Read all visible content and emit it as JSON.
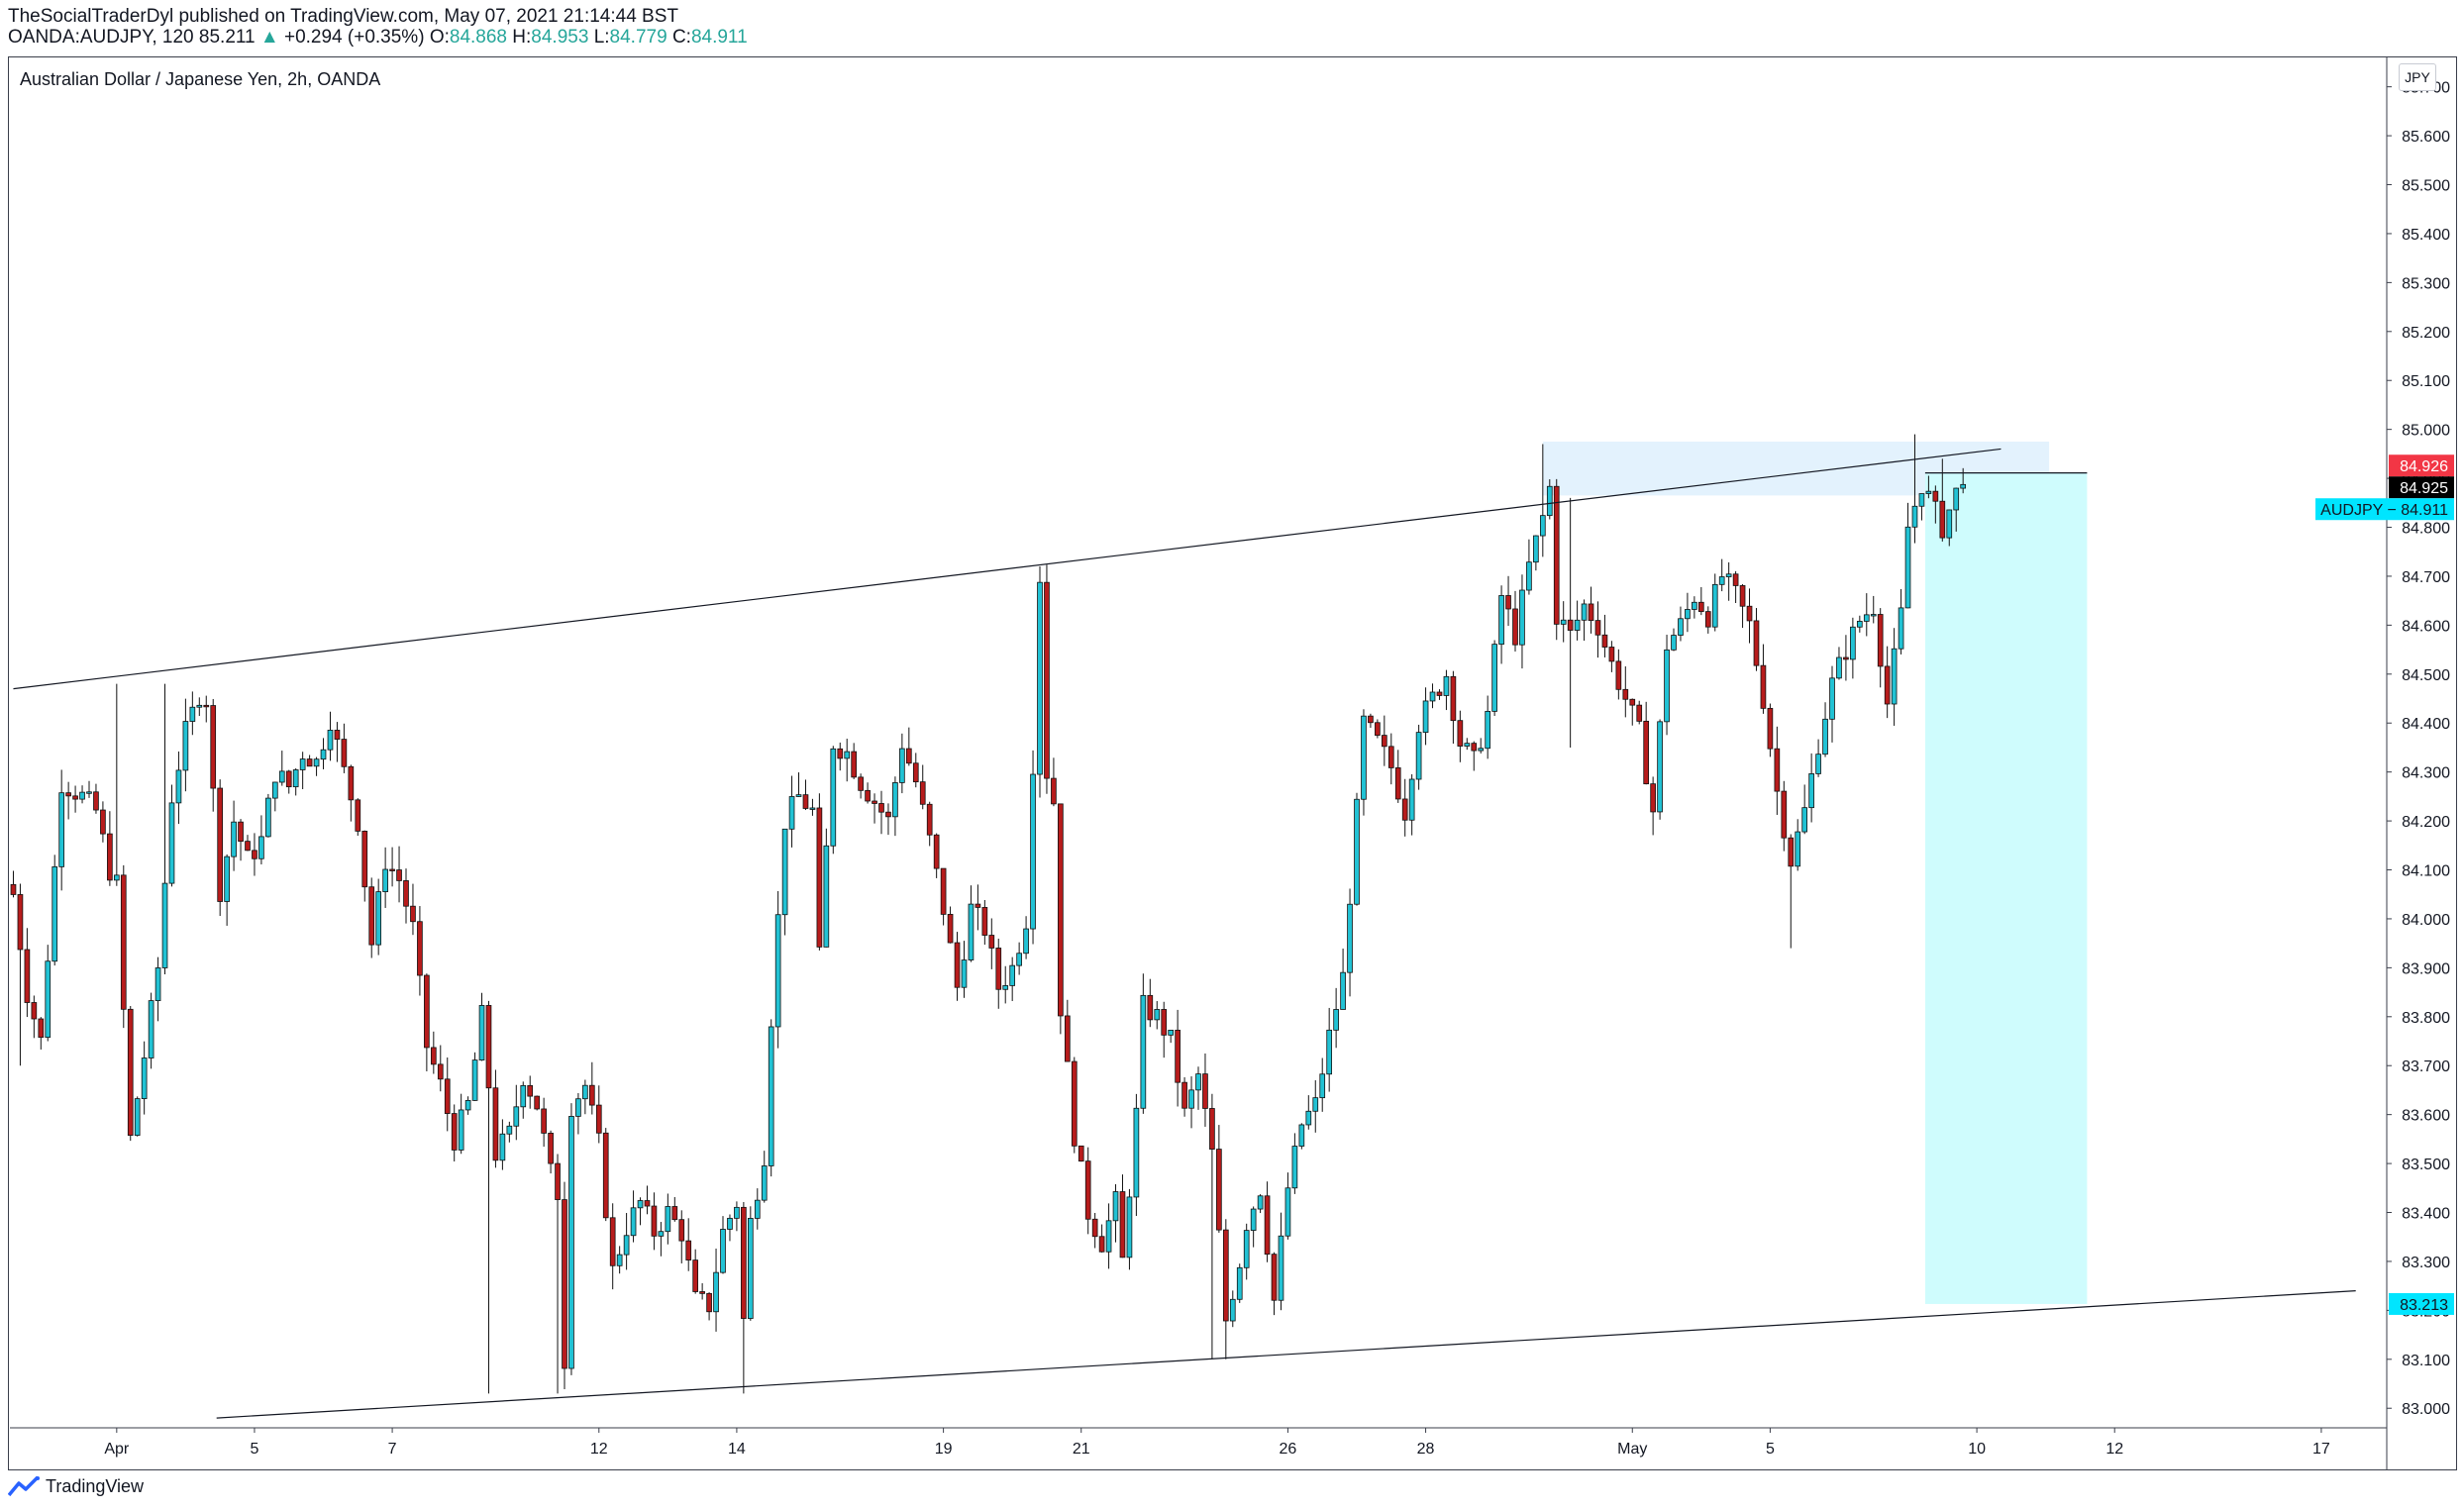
{
  "header": {
    "publisher": "TheSocialTraderDyl published on TradingView.com, May 07, 2021 21:14:44 BST",
    "symbol_line": "OANDA:AUDJPY, 120",
    "last": "85.211",
    "change_arrow": "▲",
    "change": "+0.294 (+0.35%)",
    "o_label": "O:",
    "o": "84.868",
    "h_label": "H:",
    "h": "84.953",
    "l_label": "L:",
    "l": "84.779",
    "c_label": "C:",
    "c": "84.911"
  },
  "footer": {
    "brand": "TradingView",
    "logo_icon": "tradingview-logo-icon"
  },
  "colors": {
    "up": "#26a69a",
    "down": "#b71c1c",
    "candle_up_fill": "#22c2d4",
    "tp_zone": "#cffcfd",
    "zone": "#e3f2fd",
    "red_tag": "#f23645",
    "cyan_tag": "#00e5ff"
  },
  "chart_data": {
    "type": "candlestick",
    "title": "Australian Dollar / Japanese Yen, 2h, OANDA",
    "currency": "JPY",
    "ylim": [
      82.96,
      85.76
    ],
    "y_ticks": [
      "85.700",
      "85.600",
      "85.500",
      "85.400",
      "85.300",
      "85.200",
      "85.100",
      "85.000",
      "84.900",
      "84.800",
      "84.700",
      "84.600",
      "84.500",
      "84.400",
      "84.300",
      "84.200",
      "84.100",
      "84.000",
      "83.900",
      "83.800",
      "83.700",
      "83.600",
      "83.500",
      "83.400",
      "83.300",
      "83.200",
      "83.100",
      "83.000"
    ],
    "x_ticks": [
      "Apr",
      "5",
      "7",
      "12",
      "14",
      "19",
      "21",
      "26",
      "28",
      "May",
      "5",
      "10",
      "12",
      "17"
    ],
    "x_tick_index": [
      15,
      35,
      55,
      85,
      105,
      135,
      155,
      185,
      205,
      235,
      255,
      285,
      305,
      335
    ],
    "x_slots": 345,
    "price_tags": [
      {
        "label": "84.926",
        "value": 84.926,
        "color": "#f23645"
      },
      {
        "label": "84.925",
        "value": 84.925,
        "color": "#000000"
      },
      {
        "label": "AUDJPY − 84.911",
        "value": 84.911,
        "color": "#00e5ff"
      },
      {
        "label": "83.213",
        "value": 83.213,
        "color": "#00e5ff"
      }
    ],
    "trendlines": [
      {
        "name": "upper-trendline",
        "from": {
          "i": 0,
          "v": 84.47
        },
        "to": {
          "i": 288.5,
          "v": 84.96
        }
      },
      {
        "name": "lower-trendline",
        "from": {
          "i": 29.5,
          "v": 82.98
        },
        "to": {
          "i": 340,
          "v": 83.24
        }
      }
    ],
    "zones": [
      {
        "name": "resistance-zone",
        "i0": 222,
        "i1": 295.5,
        "v0": 84.975,
        "v1": 84.865
      },
      {
        "name": "target-zone",
        "i0": 277.5,
        "i1": 301,
        "v0": 84.911,
        "v1": 83.213
      }
    ],
    "level_line": {
      "i0": 277.5,
      "i1": 301,
      "v": 84.911
    },
    "anchors": [
      [
        0,
        84.05
      ],
      [
        2,
        83.85
      ],
      [
        4,
        83.75
      ],
      [
        7,
        84.28
      ],
      [
        10,
        84.25
      ],
      [
        12,
        84.22
      ],
      [
        14,
        84.1
      ],
      [
        15,
        84.07
      ],
      [
        17,
        83.55
      ],
      [
        19,
        83.72
      ],
      [
        21,
        83.9
      ],
      [
        23,
        84.25
      ],
      [
        25,
        84.38
      ],
      [
        27,
        84.46
      ],
      [
        28,
        84.45
      ],
      [
        30,
        84.06
      ],
      [
        32,
        84.2
      ],
      [
        34,
        84.12
      ],
      [
        36,
        84.16
      ],
      [
        38,
        84.3
      ],
      [
        40,
        84.27
      ],
      [
        42,
        84.34
      ],
      [
        44,
        84.32
      ],
      [
        46,
        84.41
      ],
      [
        48,
        84.3
      ],
      [
        50,
        84.2
      ],
      [
        52,
        83.95
      ],
      [
        54,
        84.12
      ],
      [
        56,
        84.08
      ],
      [
        58,
        83.98
      ],
      [
        60,
        83.74
      ],
      [
        62,
        83.66
      ],
      [
        64,
        83.55
      ],
      [
        66,
        83.62
      ],
      [
        68,
        83.8
      ],
      [
        70,
        83.52
      ],
      [
        72,
        83.56
      ],
      [
        74,
        83.68
      ],
      [
        76,
        83.62
      ],
      [
        78,
        83.48
      ],
      [
        79,
        83.44
      ],
      [
        80,
        83.1
      ],
      [
        81,
        83.62
      ],
      [
        83,
        83.66
      ],
      [
        85,
        83.54
      ],
      [
        87,
        83.28
      ],
      [
        89,
        83.37
      ],
      [
        91,
        83.42
      ],
      [
        93,
        83.36
      ],
      [
        95,
        83.4
      ],
      [
        97,
        83.36
      ],
      [
        99,
        83.22
      ],
      [
        101,
        83.21
      ],
      [
        103,
        83.36
      ],
      [
        105,
        83.42
      ],
      [
        106,
        83.18
      ],
      [
        107,
        83.38
      ],
      [
        109,
        83.52
      ],
      [
        110,
        83.8
      ],
      [
        112,
        84.2
      ],
      [
        114,
        84.25
      ],
      [
        116,
        84.22
      ],
      [
        117,
        83.92
      ],
      [
        119,
        84.36
      ],
      [
        121,
        84.34
      ],
      [
        123,
        84.28
      ],
      [
        125,
        84.24
      ],
      [
        127,
        84.2
      ],
      [
        129,
        84.36
      ],
      [
        131,
        84.28
      ],
      [
        133,
        84.16
      ],
      [
        135,
        84.02
      ],
      [
        137,
        83.86
      ],
      [
        139,
        84.02
      ],
      [
        141,
        83.98
      ],
      [
        143,
        83.86
      ],
      [
        145,
        83.9
      ],
      [
        147,
        84.0
      ],
      [
        148,
        84.32
      ],
      [
        149,
        84.7
      ],
      [
        150,
        84.3
      ],
      [
        151,
        84.24
      ],
      [
        152,
        83.82
      ],
      [
        154,
        83.56
      ],
      [
        156,
        83.4
      ],
      [
        158,
        83.34
      ],
      [
        160,
        83.42
      ],
      [
        161,
        83.3
      ],
      [
        163,
        83.6
      ],
      [
        164,
        83.82
      ],
      [
        166,
        83.8
      ],
      [
        168,
        83.75
      ],
      [
        170,
        83.6
      ],
      [
        172,
        83.68
      ],
      [
        174,
        83.52
      ],
      [
        176,
        83.18
      ],
      [
        178,
        83.3
      ],
      [
        179,
        83.38
      ],
      [
        181,
        83.45
      ],
      [
        183,
        83.22
      ],
      [
        185,
        83.45
      ],
      [
        187,
        83.58
      ],
      [
        189,
        83.62
      ],
      [
        191,
        83.76
      ],
      [
        193,
        83.88
      ],
      [
        195,
        84.22
      ],
      [
        196,
        84.4
      ],
      [
        198,
        84.36
      ],
      [
        200,
        84.31
      ],
      [
        202,
        84.22
      ],
      [
        204,
        84.4
      ],
      [
        206,
        84.45
      ],
      [
        208,
        84.5
      ],
      [
        210,
        84.36
      ],
      [
        212,
        84.32
      ],
      [
        214,
        84.42
      ],
      [
        216,
        84.66
      ],
      [
        218,
        84.58
      ],
      [
        220,
        84.72
      ],
      [
        222,
        84.82
      ],
      [
        223,
        84.88
      ],
      [
        224,
        84.62
      ],
      [
        226,
        84.58
      ],
      [
        228,
        84.64
      ],
      [
        230,
        84.6
      ],
      [
        232,
        84.52
      ],
      [
        234,
        84.45
      ],
      [
        236,
        84.38
      ],
      [
        238,
        84.22
      ],
      [
        240,
        84.56
      ],
      [
        242,
        84.6
      ],
      [
        244,
        84.66
      ],
      [
        246,
        84.62
      ],
      [
        248,
        84.7
      ],
      [
        250,
        84.66
      ],
      [
        252,
        84.6
      ],
      [
        254,
        84.45
      ],
      [
        256,
        84.26
      ],
      [
        258,
        84.12
      ],
      [
        260,
        84.22
      ],
      [
        262,
        84.36
      ],
      [
        264,
        84.48
      ],
      [
        266,
        84.55
      ],
      [
        268,
        84.61
      ],
      [
        270,
        84.64
      ],
      [
        272,
        84.44
      ],
      [
        274,
        84.62
      ],
      [
        275,
        84.8
      ],
      [
        277,
        84.89
      ],
      [
        278,
        84.86
      ],
      [
        280,
        84.8
      ],
      [
        282,
        84.87
      ],
      [
        283,
        84.91
      ]
    ]
  }
}
